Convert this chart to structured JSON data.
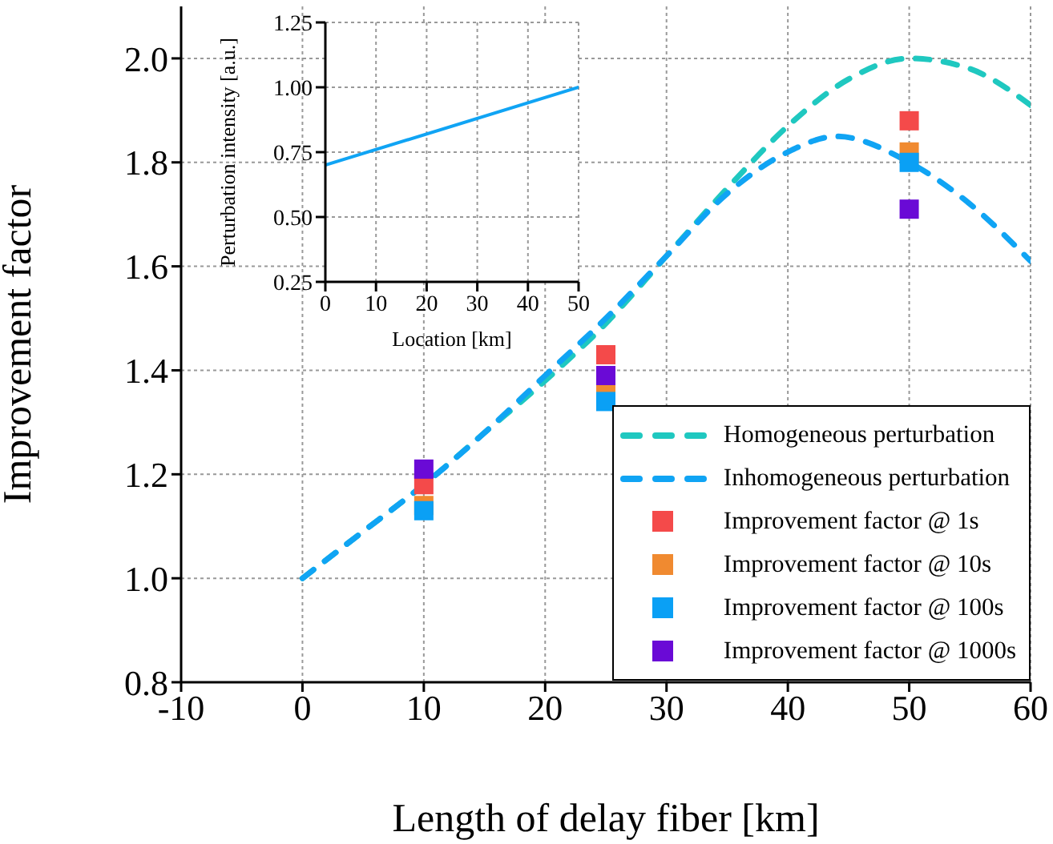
{
  "chart_data": [
    {
      "type": "line",
      "xlabel": "Length of delay fiber [km]",
      "ylabel": "Improvement factor",
      "xlim": [
        -10,
        60
      ],
      "xticks": [
        -10,
        0,
        10,
        20,
        30,
        40,
        50,
        60
      ],
      "ylim": [
        0.8,
        2.1
      ],
      "yticks": [
        0.8,
        {
          "value": 1,
          "label": "1.0"
        },
        1.2,
        1.4,
        1.6,
        1.8,
        {
          "value": 2,
          "label": "2.0"
        }
      ],
      "grid": true,
      "legend": "bottom right",
      "series": [
        {
          "name": "Homogeneous perturbation",
          "color": "#1fc8c0",
          "line_style": "dashed",
          "marker": "none",
          "x": [
            0,
            5,
            10,
            15,
            20,
            25,
            30,
            35,
            40,
            45,
            50,
            55,
            60
          ],
          "values": [
            1.0,
            1.09,
            1.18,
            1.28,
            1.38,
            1.49,
            1.62,
            1.75,
            1.87,
            1.96,
            2.0,
            1.98,
            1.91
          ]
        },
        {
          "name": "Inhomogeneous perturbation",
          "color": "#10a4f4",
          "line_style": "dashed",
          "marker": "none",
          "x": [
            0,
            5,
            10,
            15,
            20,
            25,
            30,
            35,
            40,
            44,
            50,
            55,
            60
          ],
          "values": [
            1.0,
            1.09,
            1.18,
            1.28,
            1.39,
            1.5,
            1.62,
            1.74,
            1.82,
            1.85,
            1.8,
            1.72,
            1.61
          ]
        },
        {
          "name": "Improvement factor @ 1s",
          "type": "scatter",
          "color": "#f44a4a",
          "marker": "square",
          "x": [
            10,
            25,
            50
          ],
          "values": [
            1.18,
            1.43,
            1.88
          ]
        },
        {
          "name": "Improvement factor @ 10s",
          "type": "scatter",
          "color": "#f08a30",
          "marker": "square",
          "x": [
            10,
            25,
            50
          ],
          "values": [
            1.14,
            1.36,
            1.82
          ]
        },
        {
          "name": "Improvement factor @ 100s",
          "type": "scatter",
          "color": "#0aa0f5",
          "marker": "square",
          "x": [
            10,
            25,
            50
          ],
          "values": [
            1.13,
            1.34,
            1.8
          ]
        },
        {
          "name": "Improvement factor @ 1000s",
          "type": "scatter",
          "color": "#6a0ad6",
          "marker": "square",
          "x": [
            10,
            25,
            50
          ],
          "values": [
            1.21,
            1.39,
            1.71
          ]
        }
      ]
    },
    {
      "type": "line",
      "xlabel": "Location [km]",
      "ylabel": "Perturbation intensity [a.u.]",
      "xlim": [
        0,
        50
      ],
      "xticks": [
        0,
        10,
        20,
        30,
        40,
        50
      ],
      "ylim": [
        0.25,
        1.25
      ],
      "yticks": [
        0.25,
        {
          "value": 0.5,
          "label": "0.50"
        },
        0.75,
        {
          "value": 1,
          "label": "1.00"
        },
        1.25
      ],
      "grid": true,
      "series": [
        {
          "color": "#10a4f4",
          "line_style": "solid",
          "marker": "none",
          "x": [
            0,
            50
          ],
          "values": [
            0.7,
            1.0
          ]
        }
      ]
    }
  ]
}
